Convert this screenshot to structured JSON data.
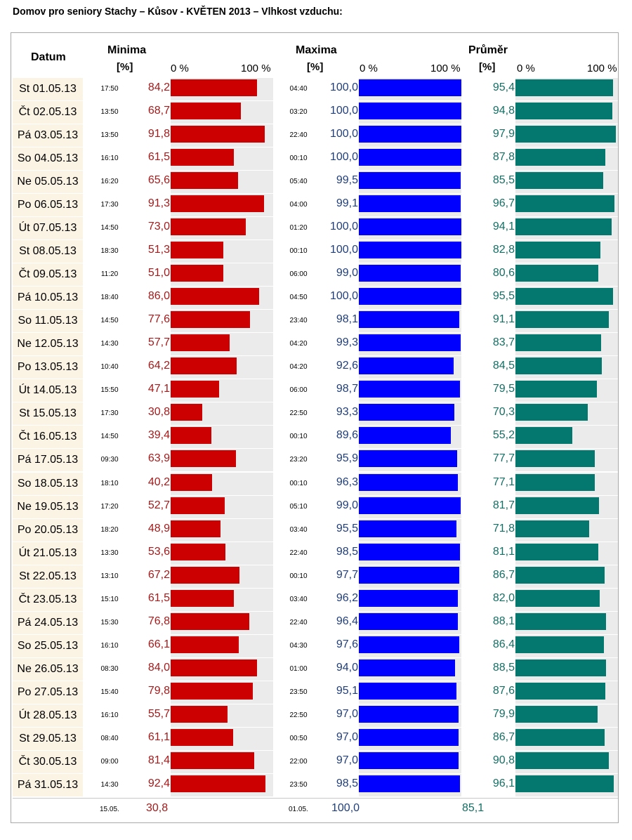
{
  "title": "Domov pro seniory Stachy – Kůsov - KVĚTEN 2013 – Vlhkost vzduchu:",
  "headers": {
    "date": "Datum",
    "min": "Minima",
    "max": "Maxima",
    "avg": "Průměr",
    "unit": "[%]",
    "pct0": "0 %",
    "pct100": "100 %"
  },
  "colors": {
    "min_bar": "#cc0000",
    "max_bar": "#0000ff",
    "avg_bar": "#04776e",
    "min_text": "#a51a1a",
    "max_text": "#203e7b",
    "avg_text": "#136f64",
    "track": "#ebebeb",
    "date_bg": "#fbf3e3"
  },
  "chart_data": {
    "type": "bar",
    "xlim": [
      0,
      100
    ],
    "categories": [
      "St 01.05.13",
      "Čt 02.05.13",
      "Pá 03.05.13",
      "So 04.05.13",
      "Ne 05.05.13",
      "Po 06.05.13",
      "Út 07.05.13",
      "St 08.05.13",
      "Čt 09.05.13",
      "Pá 10.05.13",
      "So 11.05.13",
      "Ne 12.05.13",
      "Po 13.05.13",
      "Út 14.05.13",
      "St 15.05.13",
      "Čt 16.05.13",
      "Pá 17.05.13",
      "So 18.05.13",
      "Ne 19.05.13",
      "Po 20.05.13",
      "Út 21.05.13",
      "St 22.05.13",
      "Čt 23.05.13",
      "Pá 24.05.13",
      "So 25.05.13",
      "Ne 26.05.13",
      "Po 27.05.13",
      "Út 28.05.13",
      "St 29.05.13",
      "Čt 30.05.13",
      "Pá 31.05.13"
    ],
    "min_times": [
      "17:50",
      "13:50",
      "13:50",
      "16:10",
      "16:20",
      "17:30",
      "14:50",
      "18:30",
      "11:20",
      "18:40",
      "14:50",
      "14:30",
      "10:40",
      "15:50",
      "17:30",
      "14:50",
      "09:30",
      "18:10",
      "17:20",
      "18:20",
      "13:30",
      "13:10",
      "15:10",
      "15:30",
      "16:10",
      "08:30",
      "15:40",
      "16:10",
      "08:40",
      "09:00",
      "14:30"
    ],
    "min_labels": [
      "84,2",
      "68,7",
      "91,8",
      "61,5",
      "65,6",
      "91,3",
      "73,0",
      "51,3",
      "51,0",
      "86,0",
      "77,6",
      "57,7",
      "64,2",
      "47,1",
      "30,8",
      "39,4",
      "63,9",
      "40,2",
      "52,7",
      "48,9",
      "53,6",
      "67,2",
      "61,5",
      "76,8",
      "66,1",
      "84,0",
      "79,8",
      "55,7",
      "61,1",
      "81,4",
      "92,4"
    ],
    "min_values": [
      84.2,
      68.7,
      91.8,
      61.5,
      65.6,
      91.3,
      73.0,
      51.3,
      51.0,
      86.0,
      77.6,
      57.7,
      64.2,
      47.1,
      30.8,
      39.4,
      63.9,
      40.2,
      52.7,
      48.9,
      53.6,
      67.2,
      61.5,
      76.8,
      66.1,
      84.0,
      79.8,
      55.7,
      61.1,
      81.4,
      92.4
    ],
    "max_times": [
      "04:40",
      "03:20",
      "22:40",
      "00:10",
      "05:40",
      "04:00",
      "01:20",
      "00:10",
      "06:00",
      "04:50",
      "23:40",
      "04:20",
      "04:20",
      "06:00",
      "22:50",
      "00:10",
      "23:20",
      "00:10",
      "05:10",
      "03:40",
      "22:40",
      "00:10",
      "03:40",
      "22:40",
      "04:30",
      "01:00",
      "23:50",
      "22:50",
      "00:50",
      "22:00",
      "23:50"
    ],
    "max_labels": [
      "100,0",
      "100,0",
      "100,0",
      "100,0",
      "99,5",
      "99,1",
      "100,0",
      "100,0",
      "99,0",
      "100,0",
      "98,1",
      "99,3",
      "92,6",
      "98,7",
      "93,3",
      "89,6",
      "95,9",
      "96,3",
      "99,0",
      "95,5",
      "98,5",
      "97,7",
      "96,2",
      "96,4",
      "97,6",
      "94,0",
      "95,1",
      "97,0",
      "97,0",
      "97,0",
      "98,5"
    ],
    "max_values": [
      100.0,
      100.0,
      100.0,
      100.0,
      99.5,
      99.1,
      100.0,
      100.0,
      99.0,
      100.0,
      98.1,
      99.3,
      92.6,
      98.7,
      93.3,
      89.6,
      95.9,
      96.3,
      99.0,
      95.5,
      98.5,
      97.7,
      96.2,
      96.4,
      97.6,
      94.0,
      95.1,
      97.0,
      97.0,
      97.0,
      98.5
    ],
    "avg_labels": [
      "95,4",
      "94,8",
      "97,9",
      "87,8",
      "85,5",
      "96,7",
      "94,1",
      "82,8",
      "80,6",
      "95,5",
      "91,1",
      "83,7",
      "84,5",
      "79,5",
      "70,3",
      "55,2",
      "77,7",
      "77,1",
      "81,7",
      "71,8",
      "81,1",
      "86,7",
      "82,0",
      "88,1",
      "86,4",
      "88,5",
      "87,6",
      "79,9",
      "86,7",
      "90,8",
      "96,1"
    ],
    "avg_values": [
      95.4,
      94.8,
      97.9,
      87.8,
      85.5,
      96.7,
      94.1,
      82.8,
      80.6,
      95.5,
      91.1,
      83.7,
      84.5,
      79.5,
      70.3,
      55.2,
      77.7,
      77.1,
      81.7,
      71.8,
      81.1,
      86.7,
      82.0,
      88.1,
      86.4,
      88.5,
      87.6,
      79.9,
      86.7,
      90.8,
      96.1
    ]
  },
  "summary": {
    "min_date": "15.05.",
    "min_value": "30,8",
    "max_date": "01.05.",
    "max_value": "100,0",
    "avg_value": "85,1"
  }
}
